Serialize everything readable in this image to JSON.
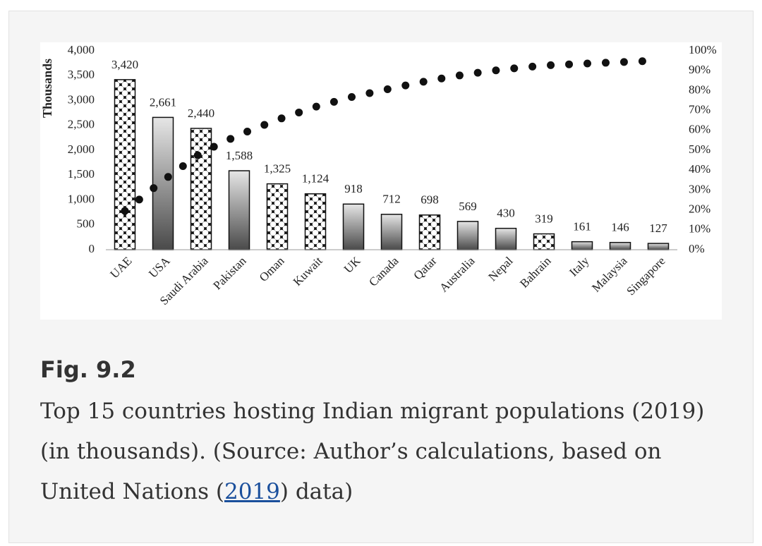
{
  "chart_data": {
    "type": "pareto",
    "y_label": "Thousands",
    "categories": [
      "UAE",
      "USA",
      "Saudi Arabia",
      "Pakistan",
      "Oman",
      "Kuwait",
      "UK",
      "Canada",
      "Qatar",
      "Australia",
      "Nepal",
      "Bahrain",
      "Italy",
      "Malaysia",
      "Singapore"
    ],
    "values": [
      3420,
      2661,
      2440,
      1588,
      1325,
      1124,
      918,
      712,
      698,
      569,
      430,
      319,
      161,
      146,
      127
    ],
    "value_labels": [
      "3,420",
      "2,661",
      "2,440",
      "1,588",
      "1,325",
      "1,124",
      "918",
      "712",
      "698",
      "569",
      "430",
      "319",
      "161",
      "146",
      "127"
    ],
    "fill_styles": [
      "pattern",
      "gradient",
      "pattern",
      "gradient",
      "pattern",
      "pattern",
      "gradient",
      "gradient",
      "pattern",
      "gradient",
      "gradient",
      "pattern",
      "gradient",
      "gradient",
      "gradient"
    ],
    "cumulative": {
      "axis": "y2",
      "color": "#111111",
      "values": [
        19.5,
        34.7,
        48.7,
        57.8,
        65.3,
        71.8,
        77.0,
        81.1,
        85.1,
        88.3,
        90.8,
        92.6,
        93.5,
        94.3,
        95.1
      ]
    },
    "ylim": [
      0,
      4000
    ],
    "yticks": [
      0,
      500,
      {
        "value": 1000,
        "label": "1,000"
      },
      {
        "value": 1500,
        "label": "1,500"
      },
      {
        "value": 2000,
        "label": "2,000"
      },
      {
        "value": 2500,
        "label": "2,500"
      },
      {
        "value": 3000,
        "label": "3,000"
      },
      {
        "value": 3500,
        "label": "3,500"
      },
      {
        "value": 4000,
        "label": "4,000"
      }
    ],
    "y2lim": [
      0,
      100
    ],
    "y2ticks": [
      {
        "value": 0,
        "label": "0%"
      },
      {
        "value": 10,
        "label": "10%"
      },
      {
        "value": 20,
        "label": "20%"
      },
      {
        "value": 30,
        "label": "30%"
      },
      {
        "value": 40,
        "label": "40%"
      },
      {
        "value": 50,
        "label": "50%"
      },
      {
        "value": 60,
        "label": "60%"
      },
      {
        "value": 70,
        "label": "70%"
      },
      {
        "value": 80,
        "label": "80%"
      },
      {
        "value": 90,
        "label": "90%"
      },
      {
        "value": 100,
        "label": "100%"
      }
    ],
    "grid": false
  },
  "caption": {
    "label": "Fig. 9.2",
    "text_before": "Top 15 countries hosting Indian migrant populations (2019) (in thousands). (Source: Author’s calculations, based on United Nations (",
    "link": "2019",
    "text_after": ") data)"
  }
}
